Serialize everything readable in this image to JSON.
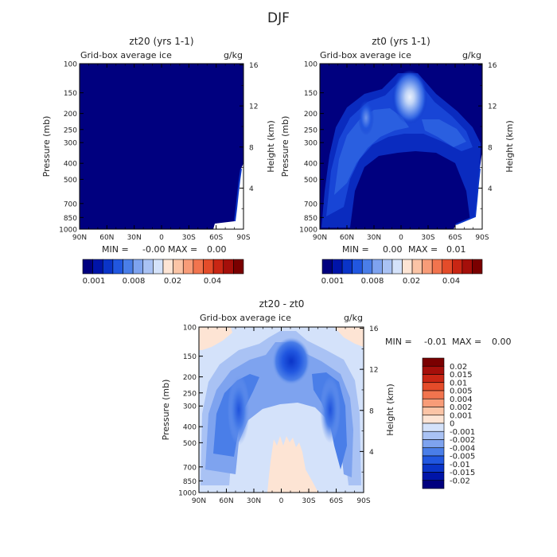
{
  "page": {
    "title": "DJF"
  },
  "colors": {
    "neg": [
      "#00007f",
      "#0014a8",
      "#0a34c8",
      "#2157e0",
      "#4a7ee8",
      "#7ea3ef",
      "#a9c2f4",
      "#d4e2fa"
    ],
    "pos": [
      "#fde4d4",
      "#fbc4a6",
      "#f89c78",
      "#f2744e",
      "#e44c2a",
      "#c92614",
      "#a50f0a",
      "#7a0000"
    ]
  },
  "chart_data": [
    {
      "type": "heatmap",
      "title": "zt20 (yrs 1-1)",
      "subtitle_left": "Grid-box average ice",
      "subtitle_right": "g/kg",
      "ylabel": "Pressure (mb)",
      "ylabel_right": "Height (km)",
      "x_ticks": [
        "90N",
        "60N",
        "30N",
        "0",
        "30S",
        "60S",
        "90S"
      ],
      "y_ticks": [
        "100",
        "150",
        "200",
        "250",
        "300",
        "400",
        "500",
        "700",
        "850",
        "1000"
      ],
      "y_ticks_right": [
        "16",
        "12",
        "8",
        "4"
      ],
      "stats": {
        "min_label": "MIN =",
        "min_value": "-0.00",
        "max_label": "MAX =",
        "max_value": "0.00"
      },
      "colorbar_labels": [
        "0.001",
        "0.008",
        "0.02",
        "0.04"
      ]
    },
    {
      "type": "heatmap",
      "title": "zt0 (yrs 1-1)",
      "subtitle_left": "Grid-box average ice",
      "subtitle_right": "g/kg",
      "ylabel": "Pressure (mb)",
      "ylabel_right": "Height (km)",
      "x_ticks": [
        "90N",
        "60N",
        "30N",
        "0",
        "30S",
        "60S",
        "90S"
      ],
      "y_ticks": [
        "100",
        "150",
        "200",
        "250",
        "300",
        "400",
        "500",
        "700",
        "850",
        "1000"
      ],
      "y_ticks_right": [
        "16",
        "12",
        "8",
        "4"
      ],
      "stats": {
        "min_label": "MIN =",
        "min_value": "0.00",
        "max_label": "MAX =",
        "max_value": "0.01"
      },
      "colorbar_labels": [
        "0.001",
        "0.008",
        "0.02",
        "0.04"
      ]
    },
    {
      "type": "heatmap",
      "title": "zt20 - zt0",
      "subtitle_left": "Grid-box average ice",
      "subtitle_right": "g/kg",
      "ylabel": "Pressure (mb)",
      "ylabel_right": "Height (km)",
      "x_ticks": [
        "90N",
        "60N",
        "30N",
        "0",
        "30S",
        "60S",
        "90S"
      ],
      "y_ticks": [
        "100",
        "150",
        "200",
        "250",
        "300",
        "400",
        "500",
        "700",
        "850",
        "1000"
      ],
      "y_ticks_right": [
        "16",
        "12",
        "8",
        "4"
      ],
      "stats": {
        "min_label": "MIN =",
        "min_value": "-0.01",
        "max_label": "MAX =",
        "max_value": "0.00"
      },
      "colorbar_labels": [
        "0.02",
        "0.015",
        "0.01",
        "0.005",
        "0.004",
        "0.002",
        "0.001",
        "0",
        "-0.001",
        "-0.002",
        "-0.004",
        "-0.005",
        "-0.01",
        "-0.015",
        "-0.02"
      ]
    }
  ]
}
